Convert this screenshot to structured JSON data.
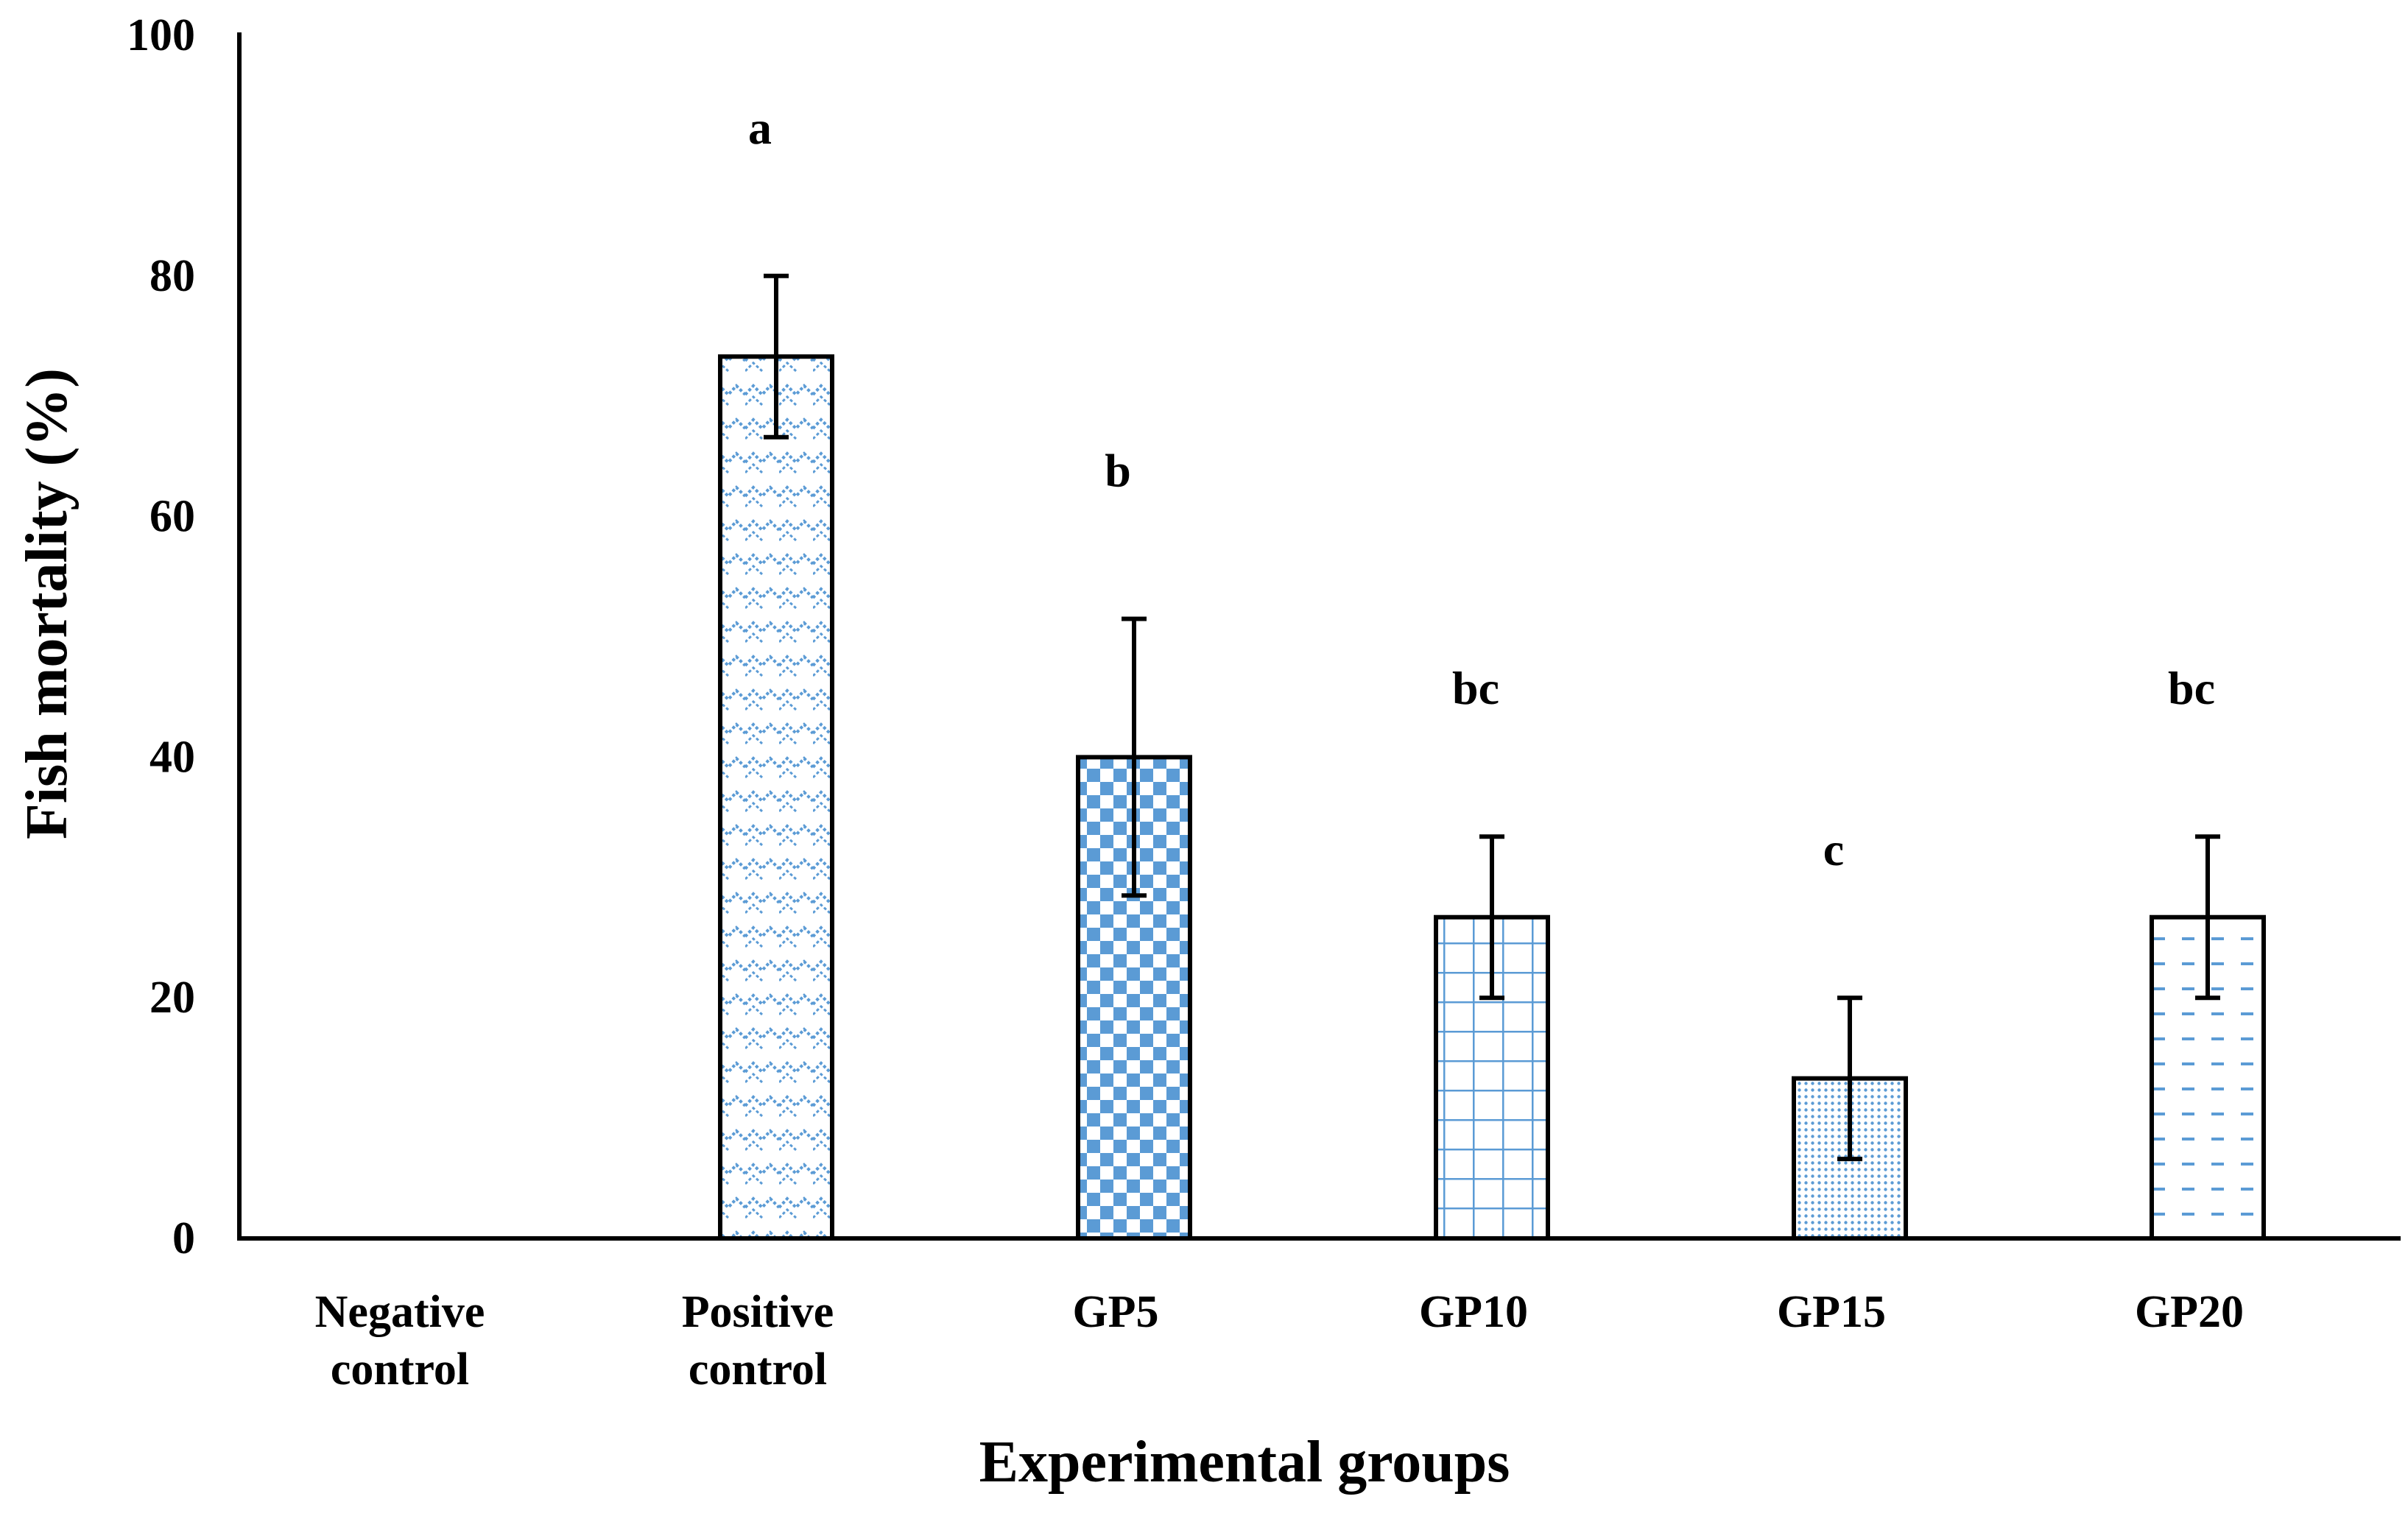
{
  "chart_data": {
    "type": "bar",
    "title": "",
    "xlabel": "Experimental groups",
    "ylabel": "Fish mortality (%)",
    "ylim": [
      0,
      100
    ],
    "yticks": [
      0,
      20,
      40,
      60,
      80,
      100
    ],
    "grid": false,
    "legend": "none",
    "categories": [
      [
        "Negative",
        "control"
      ],
      [
        "Positive",
        "control"
      ],
      [
        "GP5"
      ],
      [
        "GP10"
      ],
      [
        "GP15"
      ],
      [
        "GP20"
      ]
    ],
    "values": [
      0,
      73.3,
      40,
      26.7,
      13.3,
      26.7
    ],
    "errors": [
      0,
      6.7,
      11.5,
      6.7,
      6.7,
      6.7
    ],
    "significance": [
      "",
      "a",
      "b",
      "bc",
      "c",
      "bc"
    ],
    "colors": {
      "pattern": "#5b9bd5",
      "outline": "#000000",
      "axis": "#000000"
    },
    "patterns": [
      "none",
      "zigzag",
      "checker",
      "grid",
      "dots",
      "dashes"
    ]
  }
}
